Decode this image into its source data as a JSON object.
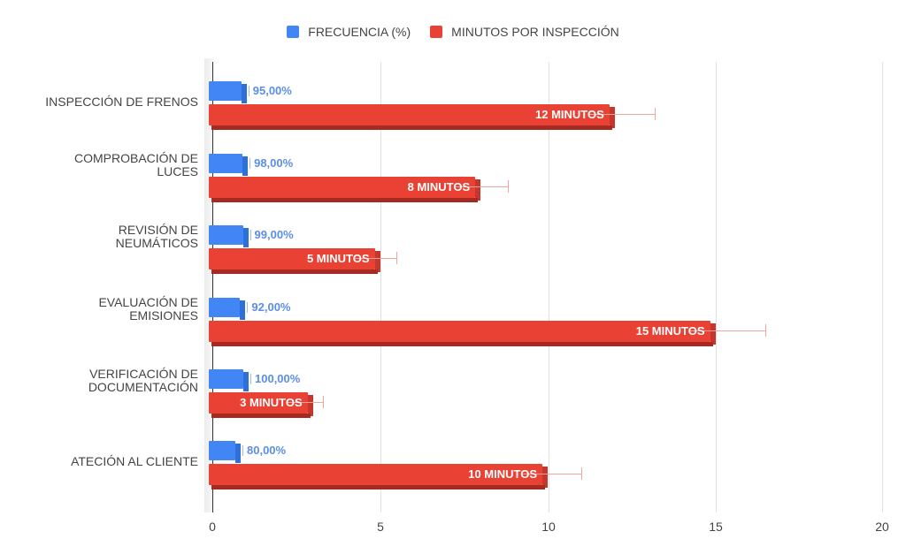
{
  "chart_data": {
    "type": "bar",
    "orientation": "horizontal",
    "title": "",
    "xlabel": "",
    "ylabel": "",
    "xlim": [
      0,
      20
    ],
    "x_ticks": [
      "0",
      "5",
      "10",
      "15",
      "20"
    ],
    "grid": true,
    "legend_position": "top",
    "categories": [
      "INSPECCIÓN DE FRENOS",
      "COMPROBACIÓN DE LUCES",
      "REVISIÓN DE NEUMÁTICOS",
      "EVALUACIÓN DE EMISIONES",
      "VERIFICACIÓN DE DOCUMENTACIÓN",
      "ATECIÓN AL CLIENTE"
    ],
    "series": [
      {
        "name": "FRECUENCIA (%)",
        "color": "#4285f4",
        "values": [
          0.95,
          0.98,
          0.99,
          0.92,
          1.0,
          0.8
        ],
        "data_labels": [
          "95,00%",
          "98,00%",
          "99,00%",
          "92,00%",
          "100,00%",
          "80,00%"
        ]
      },
      {
        "name": "MINUTOS POR INSPECCIÓN",
        "color": "#e94235",
        "values": [
          12,
          8,
          5,
          15,
          3,
          10
        ],
        "error_upper": [
          13.2,
          8.8,
          5.5,
          16.5,
          3.3,
          11
        ],
        "data_labels": [
          "12 MINUTOS",
          "8 MINUTOS",
          "5 MINUTOS",
          "15 MINUTOS",
          "3 MINUTOS",
          "10 MINUTOS"
        ]
      }
    ]
  },
  "legend": {
    "items": [
      {
        "label": "FRECUENCIA (%)",
        "color": "#4285f4"
      },
      {
        "label": "MINUTOS POR INSPECCIÓN",
        "color": "#e94235"
      }
    ]
  },
  "categories": [
    {
      "line1": "INSPECCIÓN DE FRENOS",
      "line2": ""
    },
    {
      "line1": "COMPROBACIÓN DE",
      "line2": "LUCES"
    },
    {
      "line1": "REVISIÓN DE",
      "line2": "NEUMÁTICOS"
    },
    {
      "line1": "EVALUACIÓN DE",
      "line2": "EMISIONES"
    },
    {
      "line1": "VERIFICACIÓN DE",
      "line2": "DOCUMENTACIÓN"
    },
    {
      "line1": "ATECIÓN AL CLIENTE",
      "line2": ""
    }
  ],
  "axis": {
    "ticks": [
      "0",
      "5",
      "10",
      "15",
      "20"
    ]
  }
}
